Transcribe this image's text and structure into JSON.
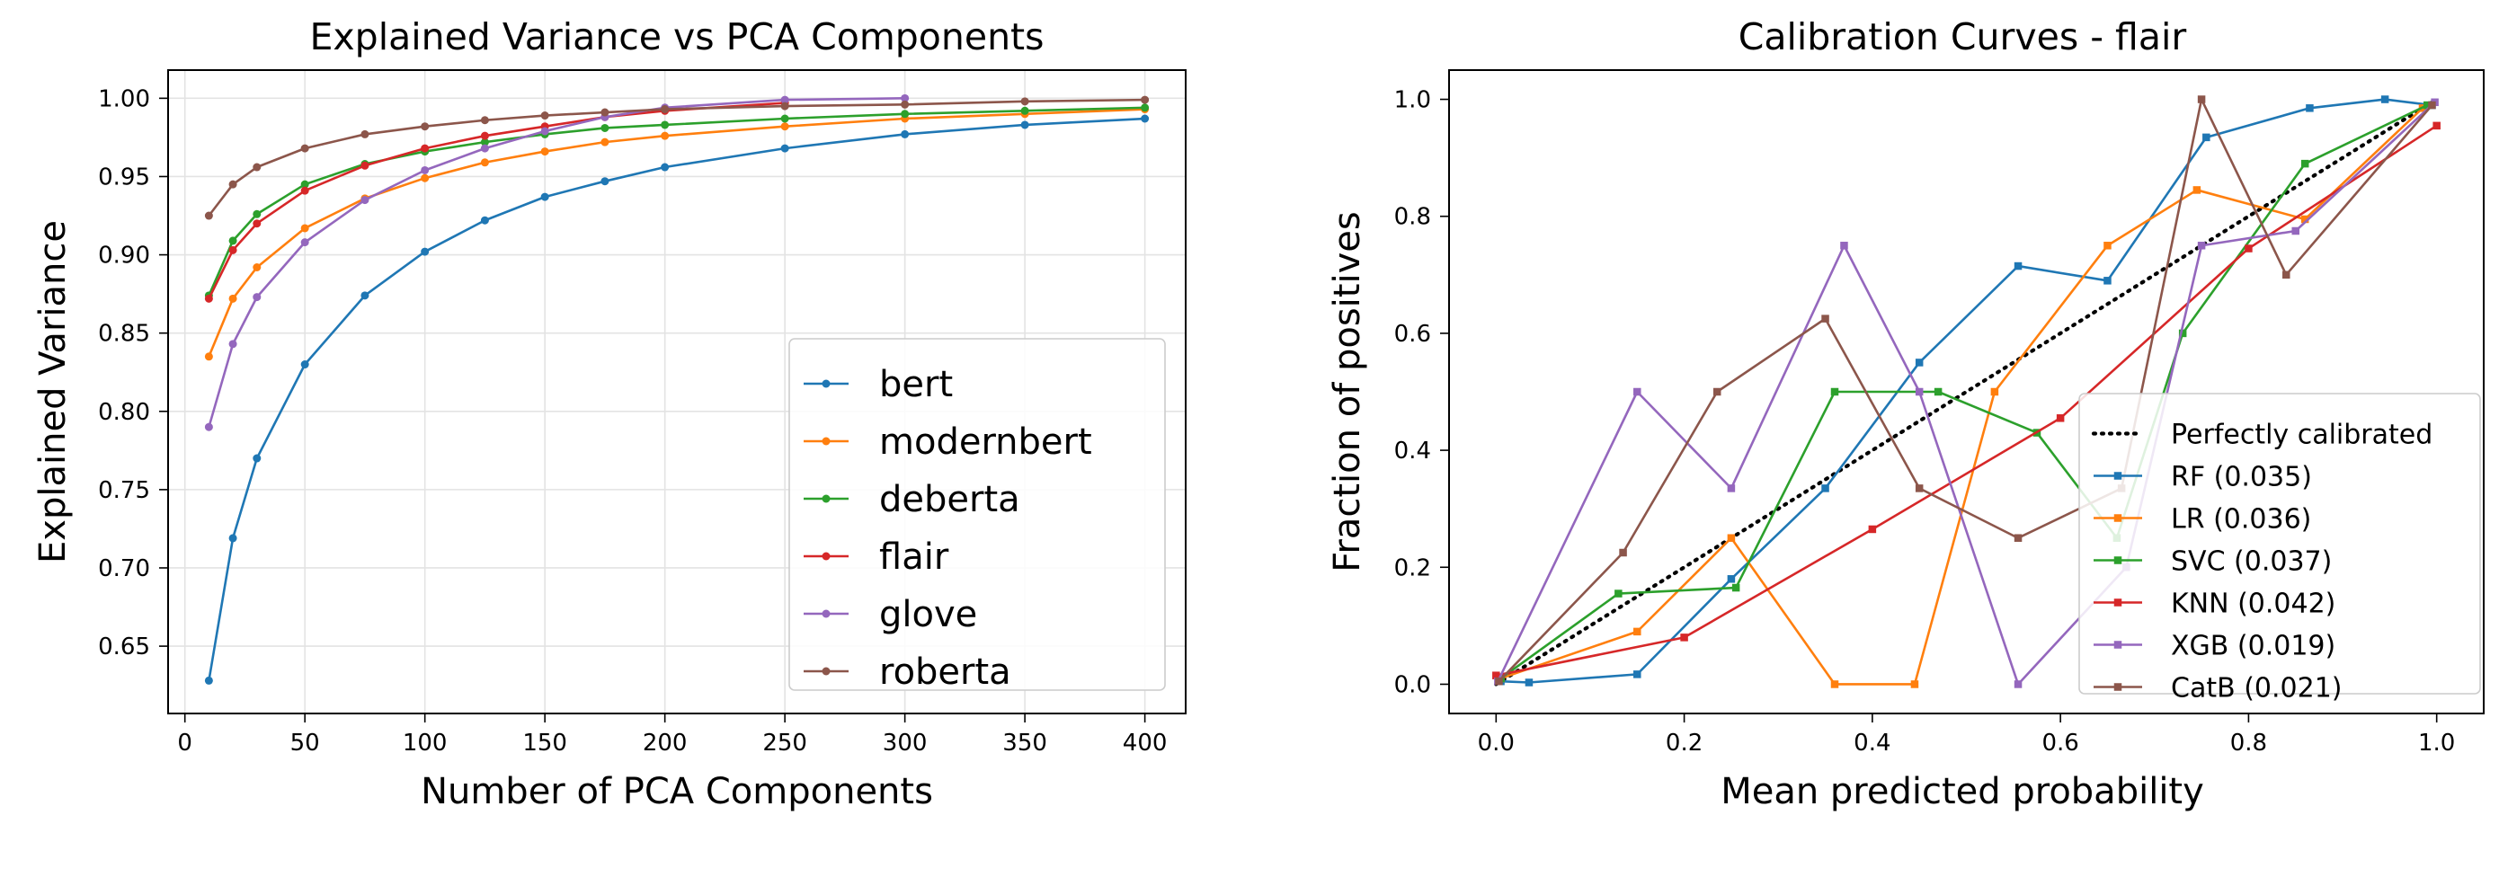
{
  "chart_data": [
    {
      "type": "line",
      "title": "Explained Variance vs PCA Components",
      "xlabel": "Number of PCA Components",
      "ylabel": "Explained Variance",
      "xlim": [
        -7,
        417
      ],
      "ylim": [
        0.607,
        1.018
      ],
      "xticks": [
        0,
        50,
        100,
        150,
        200,
        250,
        300,
        350,
        400
      ],
      "yticks": [
        0.65,
        0.7,
        0.75,
        0.8,
        0.85,
        0.9,
        0.95,
        1.0
      ],
      "grid": true,
      "legend_position": "lower-right",
      "marker": "circle",
      "series": [
        {
          "name": "bert",
          "color": "#1f77b4",
          "x": [
            10,
            20,
            30,
            50,
            75,
            100,
            125,
            150,
            175,
            200,
            250,
            300,
            350,
            400
          ],
          "y": [
            0.628,
            0.719,
            0.77,
            0.83,
            0.874,
            0.902,
            0.922,
            0.937,
            0.947,
            0.956,
            0.968,
            0.977,
            0.983,
            0.987
          ]
        },
        {
          "name": "modernbert",
          "color": "#ff7f0e",
          "x": [
            10,
            20,
            30,
            50,
            75,
            100,
            125,
            150,
            175,
            200,
            250,
            300,
            350,
            400
          ],
          "y": [
            0.835,
            0.872,
            0.892,
            0.917,
            0.936,
            0.949,
            0.959,
            0.966,
            0.972,
            0.976,
            0.982,
            0.987,
            0.99,
            0.993
          ]
        },
        {
          "name": "deberta",
          "color": "#2ca02c",
          "x": [
            10,
            20,
            30,
            50,
            75,
            100,
            125,
            150,
            175,
            200,
            250,
            300,
            350,
            400
          ],
          "y": [
            0.874,
            0.909,
            0.926,
            0.945,
            0.958,
            0.966,
            0.972,
            0.977,
            0.981,
            0.983,
            0.987,
            0.99,
            0.992,
            0.994
          ]
        },
        {
          "name": "flair",
          "color": "#d62728",
          "x": [
            10,
            20,
            30,
            50,
            75,
            100,
            125,
            150,
            175,
            200,
            250
          ],
          "y": [
            0.872,
            0.903,
            0.92,
            0.941,
            0.957,
            0.968,
            0.976,
            0.982,
            0.988,
            0.992,
            0.997
          ]
        },
        {
          "name": "glove",
          "color": "#9467bd",
          "x": [
            10,
            20,
            30,
            50,
            75,
            100,
            125,
            150,
            175,
            200,
            250,
            300
          ],
          "y": [
            0.79,
            0.843,
            0.873,
            0.908,
            0.935,
            0.954,
            0.968,
            0.979,
            0.988,
            0.994,
            0.999,
            1.0
          ]
        },
        {
          "name": "roberta",
          "color": "#8c564b",
          "x": [
            10,
            20,
            30,
            50,
            75,
            100,
            125,
            150,
            175,
            200,
            250,
            300,
            350,
            400
          ],
          "y": [
            0.925,
            0.945,
            0.956,
            0.968,
            0.977,
            0.982,
            0.986,
            0.989,
            0.991,
            0.993,
            0.995,
            0.996,
            0.998,
            0.999
          ]
        }
      ]
    },
    {
      "type": "line",
      "title": "Calibration Curves - flair",
      "xlabel": "Mean predicted probability",
      "ylabel": "Fraction of positives",
      "xlim": [
        -0.05,
        1.05
      ],
      "ylim": [
        -0.05,
        1.05
      ],
      "xticks": [
        0.0,
        0.2,
        0.4,
        0.6,
        0.8,
        1.0
      ],
      "yticks": [
        0.0,
        0.2,
        0.4,
        0.6,
        0.8,
        1.0
      ],
      "tick_labels": [
        "0.0",
        "0.2",
        "0.4",
        "0.6",
        "0.8",
        "1.0"
      ],
      "grid": false,
      "legend_position": "lower-right",
      "marker": "square",
      "reference_line": {
        "name": "Perfectly calibrated",
        "color": "#000000",
        "x": [
          0,
          1
        ],
        "y": [
          0,
          1
        ]
      },
      "series": [
        {
          "name": "RF (0.035)",
          "color": "#1f77b4",
          "x": [
            0.005,
            0.035,
            0.15,
            0.25,
            0.35,
            0.45,
            0.555,
            0.65,
            0.755,
            0.865,
            0.945,
            0.995
          ],
          "y": [
            0.005,
            0.003,
            0.017,
            0.18,
            0.335,
            0.55,
            0.715,
            0.69,
            0.935,
            0.985,
            1.0,
            0.99
          ]
        },
        {
          "name": "LR (0.036)",
          "color": "#ff7f0e",
          "x": [
            0.005,
            0.15,
            0.25,
            0.36,
            0.445,
            0.53,
            0.65,
            0.745,
            0.86,
            0.985
          ],
          "y": [
            0.01,
            0.09,
            0.25,
            0.0,
            0.0,
            0.5,
            0.75,
            0.845,
            0.795,
            0.985
          ]
        },
        {
          "name": "SVC (0.037)",
          "color": "#2ca02c",
          "x": [
            0.005,
            0.13,
            0.255,
            0.36,
            0.47,
            0.575,
            0.66,
            0.73,
            0.86,
            0.99
          ],
          "y": [
            0.01,
            0.155,
            0.165,
            0.5,
            0.5,
            0.43,
            0.25,
            0.6,
            0.89,
            0.99
          ]
        },
        {
          "name": "KNN (0.042)",
          "color": "#d62728",
          "x": [
            0.0,
            0.2,
            0.4,
            0.6,
            0.8,
            1.0
          ],
          "y": [
            0.015,
            0.08,
            0.265,
            0.455,
            0.745,
            0.955
          ]
        },
        {
          "name": "XGB (0.019)",
          "color": "#9467bd",
          "x": [
            0.002,
            0.15,
            0.25,
            0.37,
            0.45,
            0.555,
            0.67,
            0.75,
            0.85,
            0.998
          ],
          "y": [
            0.005,
            0.5,
            0.335,
            0.75,
            0.5,
            0.0,
            0.2,
            0.75,
            0.775,
            0.995
          ]
        },
        {
          "name": "CatB (0.021)",
          "color": "#8c564b",
          "x": [
            0.003,
            0.135,
            0.235,
            0.35,
            0.45,
            0.555,
            0.665,
            0.75,
            0.84,
            0.995
          ],
          "y": [
            0.005,
            0.225,
            0.5,
            0.625,
            0.335,
            0.25,
            0.335,
            1.0,
            0.7,
            0.99
          ]
        }
      ]
    }
  ]
}
